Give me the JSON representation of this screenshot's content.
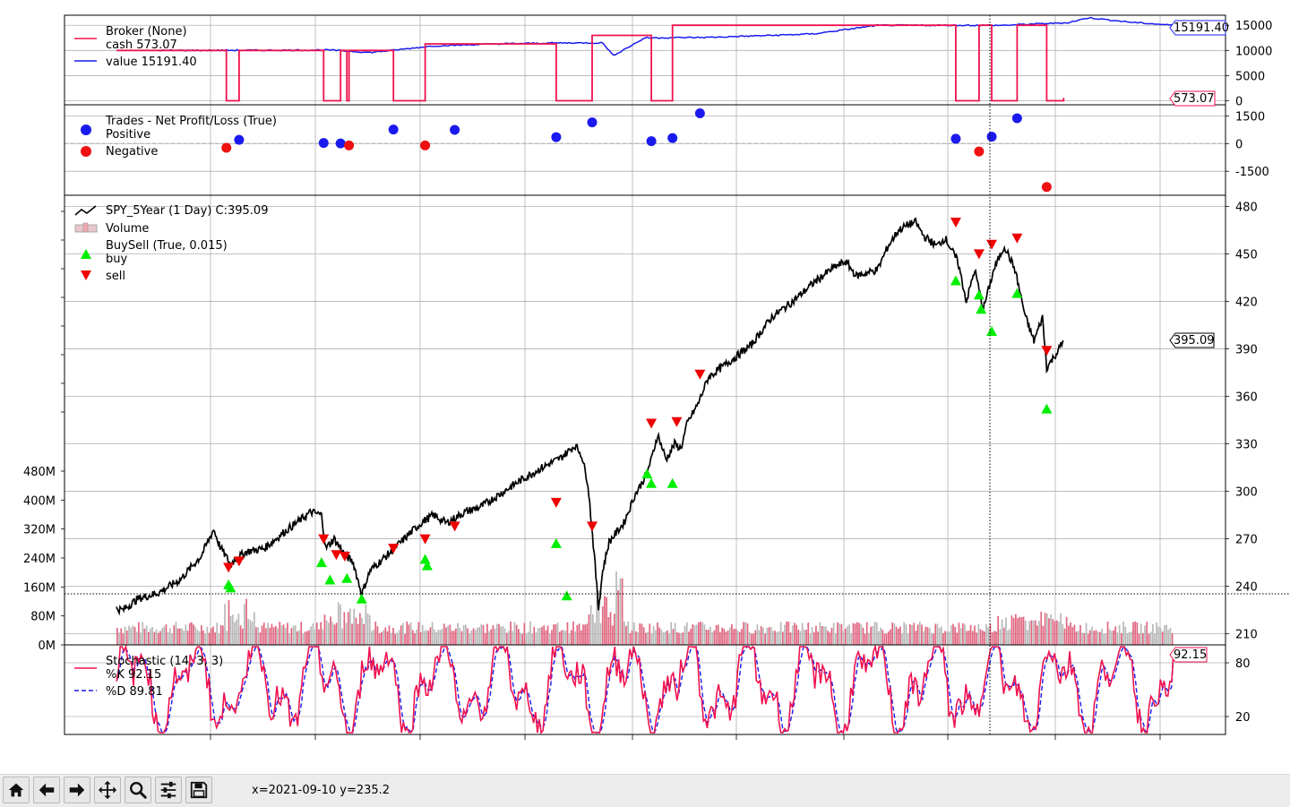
{
  "toolbar": {
    "buttons": [
      {
        "name": "home-button",
        "icon": "home-icon"
      },
      {
        "name": "back-button",
        "icon": "arrow-left-icon"
      },
      {
        "name": "forward-button",
        "icon": "arrow-right-icon"
      },
      {
        "name": "pan-button",
        "icon": "move-icon"
      },
      {
        "name": "zoom-button",
        "icon": "magnifier-icon"
      },
      {
        "name": "configure-subplots-button",
        "icon": "sliders-icon"
      },
      {
        "name": "save-button",
        "icon": "floppy-disk-icon"
      }
    ],
    "coordinates": "x=2021-09-10 y=235.2"
  },
  "chart_data": [
    {
      "type": "line",
      "panel": "broker",
      "legend": [
        "Broker (None)",
        "cash 573.07",
        "value 15191.40"
      ],
      "yticks": [
        "0",
        "5000",
        "10000",
        "15000"
      ],
      "ylim": [
        -800,
        17000
      ],
      "series": [
        {
          "name": "cash",
          "color": "#f0124f",
          "last": "573.07",
          "levels": [
            10000,
            10000,
            0,
            10000,
            10000,
            0,
            10000,
            11300,
            200,
            13000,
            0,
            15000,
            15000,
            15000,
            0,
            15000,
            0,
            200
          ]
        },
        {
          "name": "value",
          "color": "#1a1aee",
          "last": "15191.40",
          "points": [
            [
              2018,
              10000
            ],
            [
              2018.6,
              10050
            ],
            [
              2018.8,
              10100
            ],
            [
              2019.0,
              9600
            ],
            [
              2019.1,
              10000
            ],
            [
              2019.3,
              10900
            ],
            [
              2019.6,
              11300
            ],
            [
              2019.9,
              11500
            ],
            [
              2020.1,
              11500
            ],
            [
              2020.15,
              9000
            ],
            [
              2020.3,
              12500
            ],
            [
              2020.6,
              12600
            ],
            [
              2020.9,
              13000
            ],
            [
              2021.1,
              13300
            ],
            [
              2021.4,
              15000
            ],
            [
              2021.8,
              15000
            ],
            [
              2022.0,
              15000
            ],
            [
              2022.1,
              15200
            ],
            [
              2022.3,
              15500
            ],
            [
              2022.4,
              16500
            ],
            [
              2022.6,
              15600
            ],
            [
              2022.9,
              14700
            ],
            [
              2023.0,
              15191.4
            ]
          ]
        }
      ]
    },
    {
      "type": "scatter",
      "panel": "trades",
      "legend": [
        "Trades - Net Profit/Loss (True)",
        "Positive",
        "Negative"
      ],
      "yticks": [
        "-1500",
        "0",
        "1500"
      ],
      "ylim": [
        -2800,
        2100
      ],
      "colors": {
        "positive": "#1a1aee",
        "negative": "#ee1111"
      },
      "points": [
        {
          "date": 2018.32,
          "pnl": -230
        },
        {
          "date": 2018.38,
          "pnl": 200
        },
        {
          "date": 2018.78,
          "pnl": 30
        },
        {
          "date": 2018.86,
          "pnl": 10
        },
        {
          "date": 2018.9,
          "pnl": -100
        },
        {
          "date": 2019.11,
          "pnl": 760
        },
        {
          "date": 2019.26,
          "pnl": -100
        },
        {
          "date": 2019.4,
          "pnl": 740
        },
        {
          "date": 2019.88,
          "pnl": 350
        },
        {
          "date": 2020.05,
          "pnl": 1150
        },
        {
          "date": 2020.33,
          "pnl": 130
        },
        {
          "date": 2020.43,
          "pnl": 300
        },
        {
          "date": 2020.56,
          "pnl": 1640
        },
        {
          "date": 2021.77,
          "pnl": 260
        },
        {
          "date": 2021.88,
          "pnl": -430
        },
        {
          "date": 2021.94,
          "pnl": 370
        },
        {
          "date": 2022.06,
          "pnl": 1370
        },
        {
          "date": 2022.2,
          "pnl": -2350
        }
      ]
    },
    {
      "type": "line",
      "panel": "price",
      "legend": [
        "SPY_5Year (1 Day) C:395.09",
        "Volume",
        "BuySell (True, 0.015)",
        "buy",
        "sell"
      ],
      "yticks": [
        "210",
        "240",
        "270",
        "300",
        "330",
        "360",
        "390",
        "420",
        "450",
        "480"
      ],
      "vol_ticks": [
        "0M",
        "80M",
        "160M",
        "240M",
        "320M",
        "400M",
        "480M"
      ],
      "ylim": [
        203,
        487
      ],
      "last_label": "395.09",
      "xlim": [
        2017.8,
        2022.8
      ],
      "series": [
        {
          "name": "SPY_5Year (1 Day)",
          "color": "#000000",
          "points": [
            [
              2017.8,
              226
            ],
            [
              2017.83,
              225
            ],
            [
              2017.9,
              232
            ],
            [
              2018.0,
              236
            ],
            [
              2018.1,
              244
            ],
            [
              2018.2,
              259
            ],
            [
              2018.26,
              276
            ],
            [
              2018.29,
              265
            ],
            [
              2018.34,
              254
            ],
            [
              2018.37,
              258
            ],
            [
              2018.42,
              262
            ],
            [
              2018.5,
              264
            ],
            [
              2018.6,
              275
            ],
            [
              2018.72,
              287
            ],
            [
              2018.77,
              285
            ],
            [
              2018.79,
              264
            ],
            [
              2018.83,
              270
            ],
            [
              2018.88,
              260
            ],
            [
              2018.92,
              255
            ],
            [
              2018.96,
              235
            ],
            [
              2019.0,
              250
            ],
            [
              2019.1,
              262
            ],
            [
              2019.2,
              275
            ],
            [
              2019.25,
              281
            ],
            [
              2019.3,
              285
            ],
            [
              2019.36,
              280
            ],
            [
              2019.45,
              287
            ],
            [
              2019.52,
              290
            ],
            [
              2019.6,
              297
            ],
            [
              2019.7,
              306
            ],
            [
              2019.8,
              314
            ],
            [
              2019.9,
              321
            ],
            [
              2019.97,
              329
            ],
            [
              2020.0,
              323
            ],
            [
              2020.03,
              305
            ],
            [
              2020.06,
              260
            ],
            [
              2020.08,
              226
            ],
            [
              2020.1,
              250
            ],
            [
              2020.13,
              268
            ],
            [
              2020.2,
              280
            ],
            [
              2020.25,
              297
            ],
            [
              2020.3,
              309
            ],
            [
              2020.33,
              320
            ],
            [
              2020.36,
              336
            ],
            [
              2020.4,
              320
            ],
            [
              2020.44,
              330
            ],
            [
              2020.47,
              327
            ],
            [
              2020.5,
              343
            ],
            [
              2020.55,
              355
            ],
            [
              2020.6,
              372
            ],
            [
              2020.7,
              382
            ],
            [
              2020.8,
              392
            ],
            [
              2020.9,
              410
            ],
            [
              2021.0,
              420
            ],
            [
              2021.1,
              432
            ],
            [
              2021.2,
              442
            ],
            [
              2021.25,
              445
            ],
            [
              2021.3,
              436
            ],
            [
              2021.4,
              440
            ],
            [
              2021.45,
              455
            ],
            [
              2021.5,
              465
            ],
            [
              2021.54,
              468
            ],
            [
              2021.58,
              470
            ],
            [
              2021.62,
              461
            ],
            [
              2021.68,
              455
            ],
            [
              2021.72,
              460
            ],
            [
              2021.78,
              445
            ],
            [
              2021.82,
              420
            ],
            [
              2021.86,
              440
            ],
            [
              2021.9,
              415
            ],
            [
              2021.95,
              440
            ],
            [
              2022.0,
              455
            ],
            [
              2022.05,
              440
            ],
            [
              2022.1,
              410
            ],
            [
              2022.14,
              395
            ],
            [
              2022.18,
              410
            ],
            [
              2022.2,
              378
            ],
            [
              2022.25,
              388
            ],
            [
              2022.28,
              395.09
            ]
          ]
        }
      ],
      "markers": {
        "buy_color": "#00ee00",
        "sell_color": "#ee0000",
        "buy": [
          [
            2018.33,
            241
          ],
          [
            2018.34,
            239
          ],
          [
            2018.77,
            255
          ],
          [
            2018.81,
            244
          ],
          [
            2018.89,
            245
          ],
          [
            2018.96,
            232
          ],
          [
            2019.26,
            257
          ],
          [
            2019.27,
            253
          ],
          [
            2019.88,
            267
          ],
          [
            2019.93,
            234
          ],
          [
            2020.31,
            311
          ],
          [
            2020.33,
            305
          ],
          [
            2020.43,
            305
          ],
          [
            2021.77,
            433
          ],
          [
            2021.88,
            424
          ],
          [
            2021.89,
            415
          ],
          [
            2021.94,
            401
          ],
          [
            2022.06,
            425
          ],
          [
            2022.2,
            352
          ]
        ],
        "sell": [
          [
            2018.33,
            252
          ],
          [
            2018.38,
            256
          ],
          [
            2018.78,
            270
          ],
          [
            2018.84,
            260
          ],
          [
            2018.88,
            259
          ],
          [
            2019.11,
            264
          ],
          [
            2019.26,
            270
          ],
          [
            2019.4,
            278
          ],
          [
            2019.88,
            293
          ],
          [
            2020.05,
            278
          ],
          [
            2020.33,
            343
          ],
          [
            2020.45,
            344
          ],
          [
            2020.56,
            374
          ],
          [
            2021.77,
            470
          ],
          [
            2021.88,
            450
          ],
          [
            2021.94,
            456
          ],
          [
            2022.06,
            460
          ],
          [
            2022.2,
            389
          ]
        ]
      }
    },
    {
      "type": "line",
      "panel": "stochastic",
      "legend": [
        "Stochastic (14, 3, 3)",
        "%K 92.15",
        "%D 89.81"
      ],
      "yticks": [
        "20",
        "80"
      ],
      "ylim": [
        0,
        100
      ],
      "last_label": "92.15",
      "series": [
        {
          "name": "%K",
          "color": "#f0124f",
          "last": 92.15
        },
        {
          "name": "%D",
          "color": "#1a1aee",
          "last": 89.81
        }
      ]
    }
  ],
  "crosshair": {
    "x": "2021-09-10",
    "y": "235.2"
  }
}
